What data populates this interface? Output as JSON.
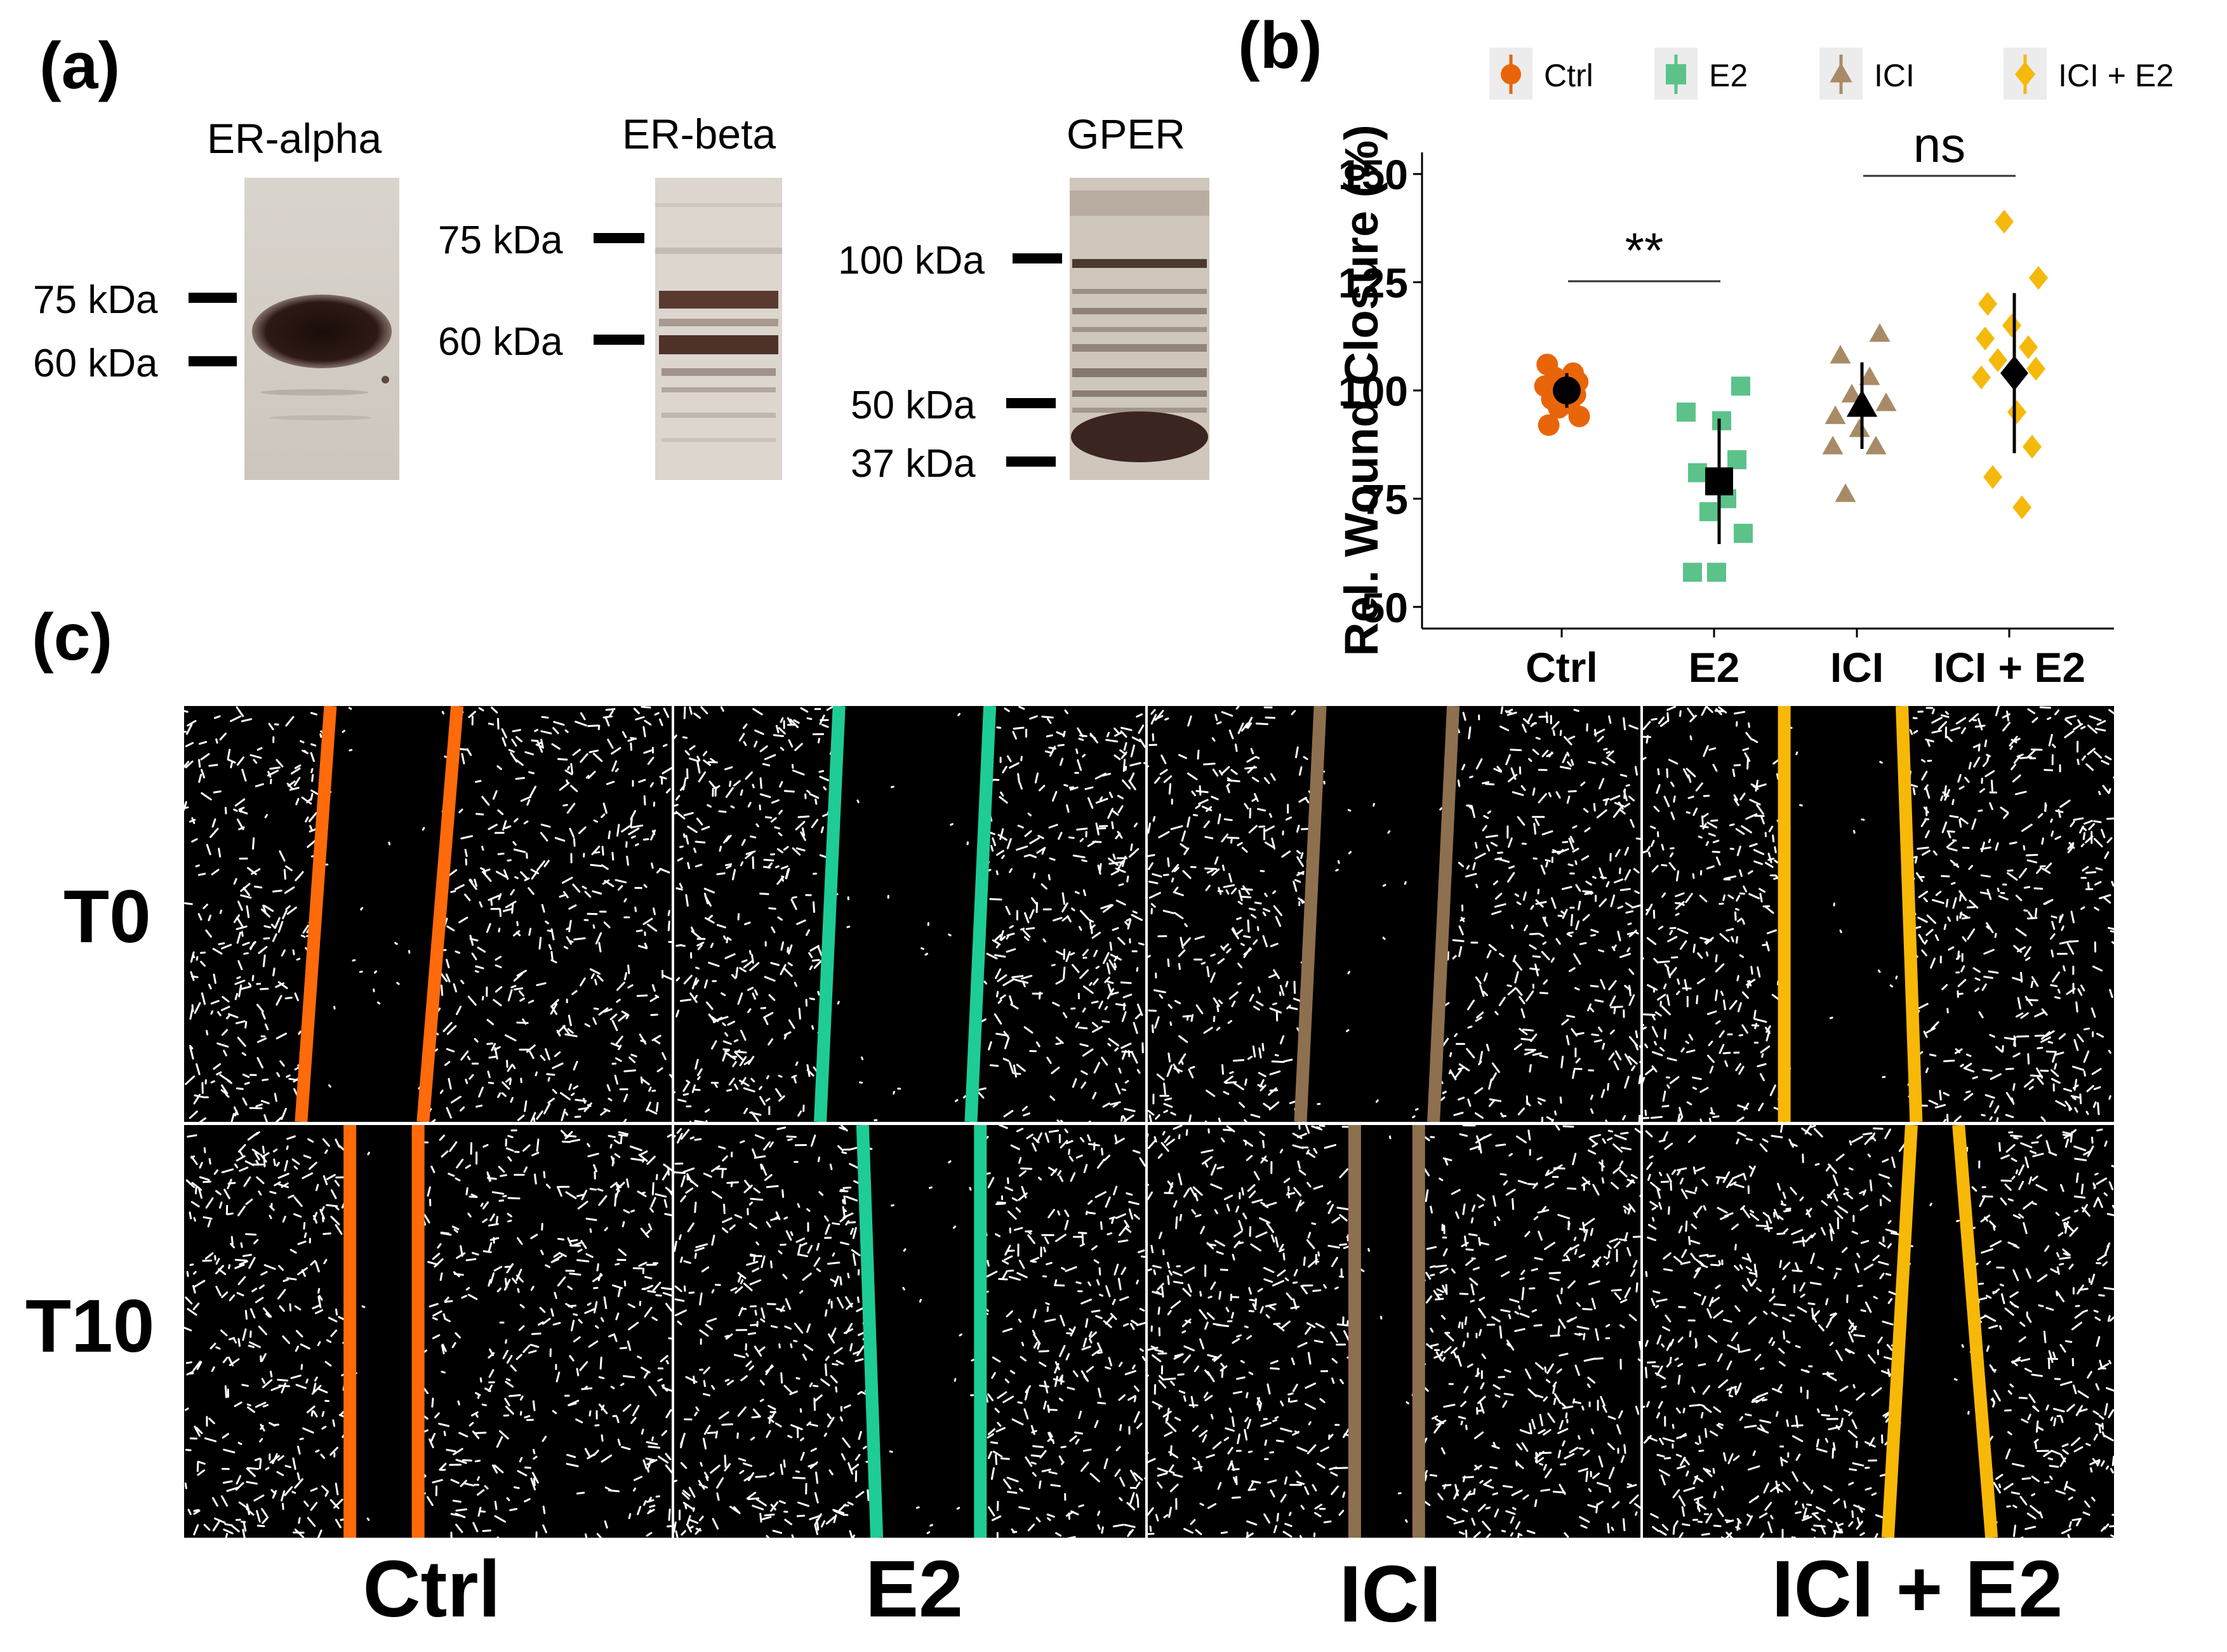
{
  "panels": {
    "a": "(a)",
    "b": "(b)",
    "c": "(c)"
  },
  "blots": {
    "er_alpha": {
      "title": "ER-alpha",
      "markers": [
        "75 kDa",
        "60 kDa"
      ]
    },
    "er_beta": {
      "title": "ER-beta",
      "markers": [
        "75 kDa",
        "60 kDa"
      ]
    },
    "gper": {
      "title": "GPER",
      "markers": [
        "100 kDa",
        "50 kDa",
        "37 kDa"
      ]
    }
  },
  "chart_data": {
    "type": "scatter",
    "title": "",
    "xlabel": "",
    "ylabel": "Rel. Wound Closure (%)",
    "ylim": [
      45,
      155
    ],
    "yticks": [
      50,
      75,
      100,
      125,
      150
    ],
    "categories": [
      "Ctrl",
      "E2",
      "ICI",
      "ICI + E2"
    ],
    "legend": {
      "placement": "top",
      "entries": [
        {
          "name": "Ctrl",
          "shape": "circle"
        },
        {
          "name": "E2",
          "shape": "square"
        },
        {
          "name": "ICI",
          "shape": "triangle"
        },
        {
          "name": "ICI + E2",
          "shape": "diamond"
        }
      ]
    },
    "colors": {
      "Ctrl": "#E8650A",
      "E2": "#5CC28A",
      "ICI": "#A88B66",
      "ICI + E2": "#F5B90C"
    },
    "series": [
      {
        "name": "Ctrl",
        "points": [
          106,
          104,
          103,
          102,
          101,
          100,
          99,
          98,
          97,
          96,
          94,
          92
        ],
        "mean": 100,
        "sd": 4
      },
      {
        "name": "E2",
        "points": [
          101,
          95,
          93,
          84,
          81,
          75,
          72,
          67,
          58,
          58
        ],
        "mean": 79,
        "sd": 14.5
      },
      {
        "name": "ICI",
        "points": [
          113,
          108,
          103,
          99,
          97,
          94,
          91,
          87,
          87,
          76
        ],
        "mean": 96.5,
        "sd": 10
      },
      {
        "name": "ICI + E2",
        "points": [
          139,
          126,
          120,
          115,
          112,
          110,
          107,
          105,
          103,
          95,
          87,
          80,
          73
        ],
        "mean": 104,
        "sd": 18.5
      }
    ],
    "annotations": [
      {
        "text": "**",
        "between": [
          "Ctrl",
          "E2"
        ]
      },
      {
        "text": "ns",
        "between": [
          "ICI",
          "ICI + E2"
        ]
      }
    ]
  },
  "wound": {
    "rows": [
      "T0",
      "T10"
    ],
    "columns": [
      "Ctrl",
      "E2",
      "ICI",
      "ICI + E2"
    ],
    "line_colors": [
      "#FF6A0A",
      "#1ECC96",
      "#8E6F4E",
      "#F8B808"
    ]
  }
}
